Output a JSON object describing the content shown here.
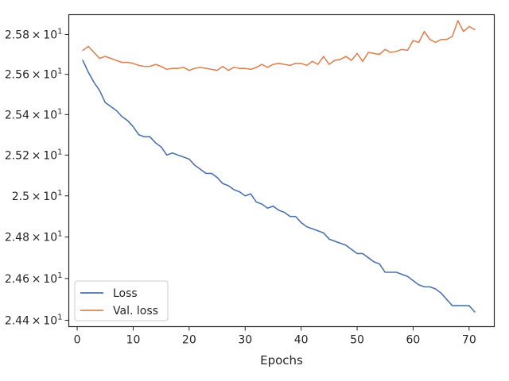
{
  "chart_data": {
    "type": "line",
    "title": "",
    "xlabel": "Epochs",
    "ylabel": "",
    "xlim": [
      -1.5,
      74.5
    ],
    "ylim": [
      24.37,
      25.9
    ],
    "yscale": "log",
    "grid": false,
    "legend_position": "lower-left",
    "x_ticks": [
      0,
      10,
      20,
      30,
      40,
      50,
      60,
      70
    ],
    "x_tick_labels": [
      "0",
      "10",
      "20",
      "30",
      "40",
      "50",
      "60",
      "70"
    ],
    "y_ticks": [
      24.4,
      24.6,
      24.8,
      25.0,
      25.2,
      25.4,
      25.6,
      25.8
    ],
    "y_tick_mantissas": [
      "2.44",
      "2.46",
      "2.48",
      "2.5",
      "2.52",
      "2.54",
      "2.56",
      "2.58"
    ],
    "y_tick_base": "10",
    "y_tick_exponent": "1",
    "series": [
      {
        "name": "Loss",
        "color": "#4c72b0",
        "x": [
          1,
          2,
          3,
          4,
          5,
          6,
          7,
          8,
          9,
          10,
          11,
          12,
          13,
          14,
          15,
          16,
          17,
          18,
          19,
          20,
          21,
          22,
          23,
          24,
          25,
          26,
          27,
          28,
          29,
          30,
          31,
          32,
          33,
          34,
          35,
          36,
          37,
          38,
          39,
          40,
          41,
          42,
          43,
          44,
          45,
          46,
          47,
          48,
          49,
          50,
          51,
          52,
          53,
          54,
          55,
          56,
          57,
          58,
          59,
          60,
          61,
          62,
          63,
          64,
          65,
          66,
          67,
          68,
          69,
          70,
          71
        ],
        "values": [
          25.67,
          25.61,
          25.56,
          25.52,
          25.46,
          25.44,
          25.42,
          25.39,
          25.37,
          25.34,
          25.3,
          25.29,
          25.29,
          25.26,
          25.24,
          25.2,
          25.21,
          25.2,
          25.19,
          25.18,
          25.15,
          25.13,
          25.11,
          25.11,
          25.09,
          25.06,
          25.05,
          25.03,
          25.02,
          25.0,
          25.01,
          24.97,
          24.96,
          24.94,
          24.95,
          24.93,
          24.92,
          24.9,
          24.9,
          24.87,
          24.85,
          24.84,
          24.83,
          24.82,
          24.79,
          24.78,
          24.77,
          24.76,
          24.74,
          24.72,
          24.72,
          24.7,
          24.68,
          24.67,
          24.63,
          24.63,
          24.63,
          24.62,
          24.61,
          24.59,
          24.57,
          24.56,
          24.56,
          24.55,
          24.53,
          24.5,
          24.47,
          24.47,
          24.47,
          24.47,
          24.44
        ]
      },
      {
        "name": "Val. loss",
        "color": "#dd8452",
        "x": [
          1,
          2,
          3,
          4,
          5,
          6,
          7,
          8,
          9,
          10,
          11,
          12,
          13,
          14,
          15,
          16,
          17,
          18,
          19,
          20,
          21,
          22,
          23,
          24,
          25,
          26,
          27,
          28,
          29,
          30,
          31,
          32,
          33,
          34,
          35,
          36,
          37,
          38,
          39,
          40,
          41,
          42,
          43,
          44,
          45,
          46,
          47,
          48,
          49,
          50,
          51,
          52,
          53,
          54,
          55,
          56,
          57,
          58,
          59,
          60,
          61,
          62,
          63,
          64,
          65,
          66,
          67,
          68,
          69,
          70,
          71
        ],
        "values": [
          25.72,
          25.74,
          25.71,
          25.68,
          25.69,
          25.68,
          25.67,
          25.66,
          25.66,
          25.655,
          25.645,
          25.64,
          25.64,
          25.65,
          25.64,
          25.625,
          25.63,
          25.63,
          25.635,
          25.62,
          25.63,
          25.635,
          25.63,
          25.625,
          25.62,
          25.64,
          25.62,
          25.635,
          25.63,
          25.63,
          25.625,
          25.635,
          25.65,
          25.635,
          25.65,
          25.655,
          25.65,
          25.645,
          25.655,
          25.655,
          25.645,
          25.665,
          25.65,
          25.69,
          25.65,
          25.67,
          25.675,
          25.69,
          25.67,
          25.705,
          25.665,
          25.71,
          25.705,
          25.7,
          25.725,
          25.71,
          25.715,
          25.725,
          25.72,
          25.77,
          25.76,
          25.815,
          25.775,
          25.76,
          25.775,
          25.775,
          25.79,
          25.87,
          25.815,
          25.84,
          25.825
        ]
      }
    ]
  }
}
